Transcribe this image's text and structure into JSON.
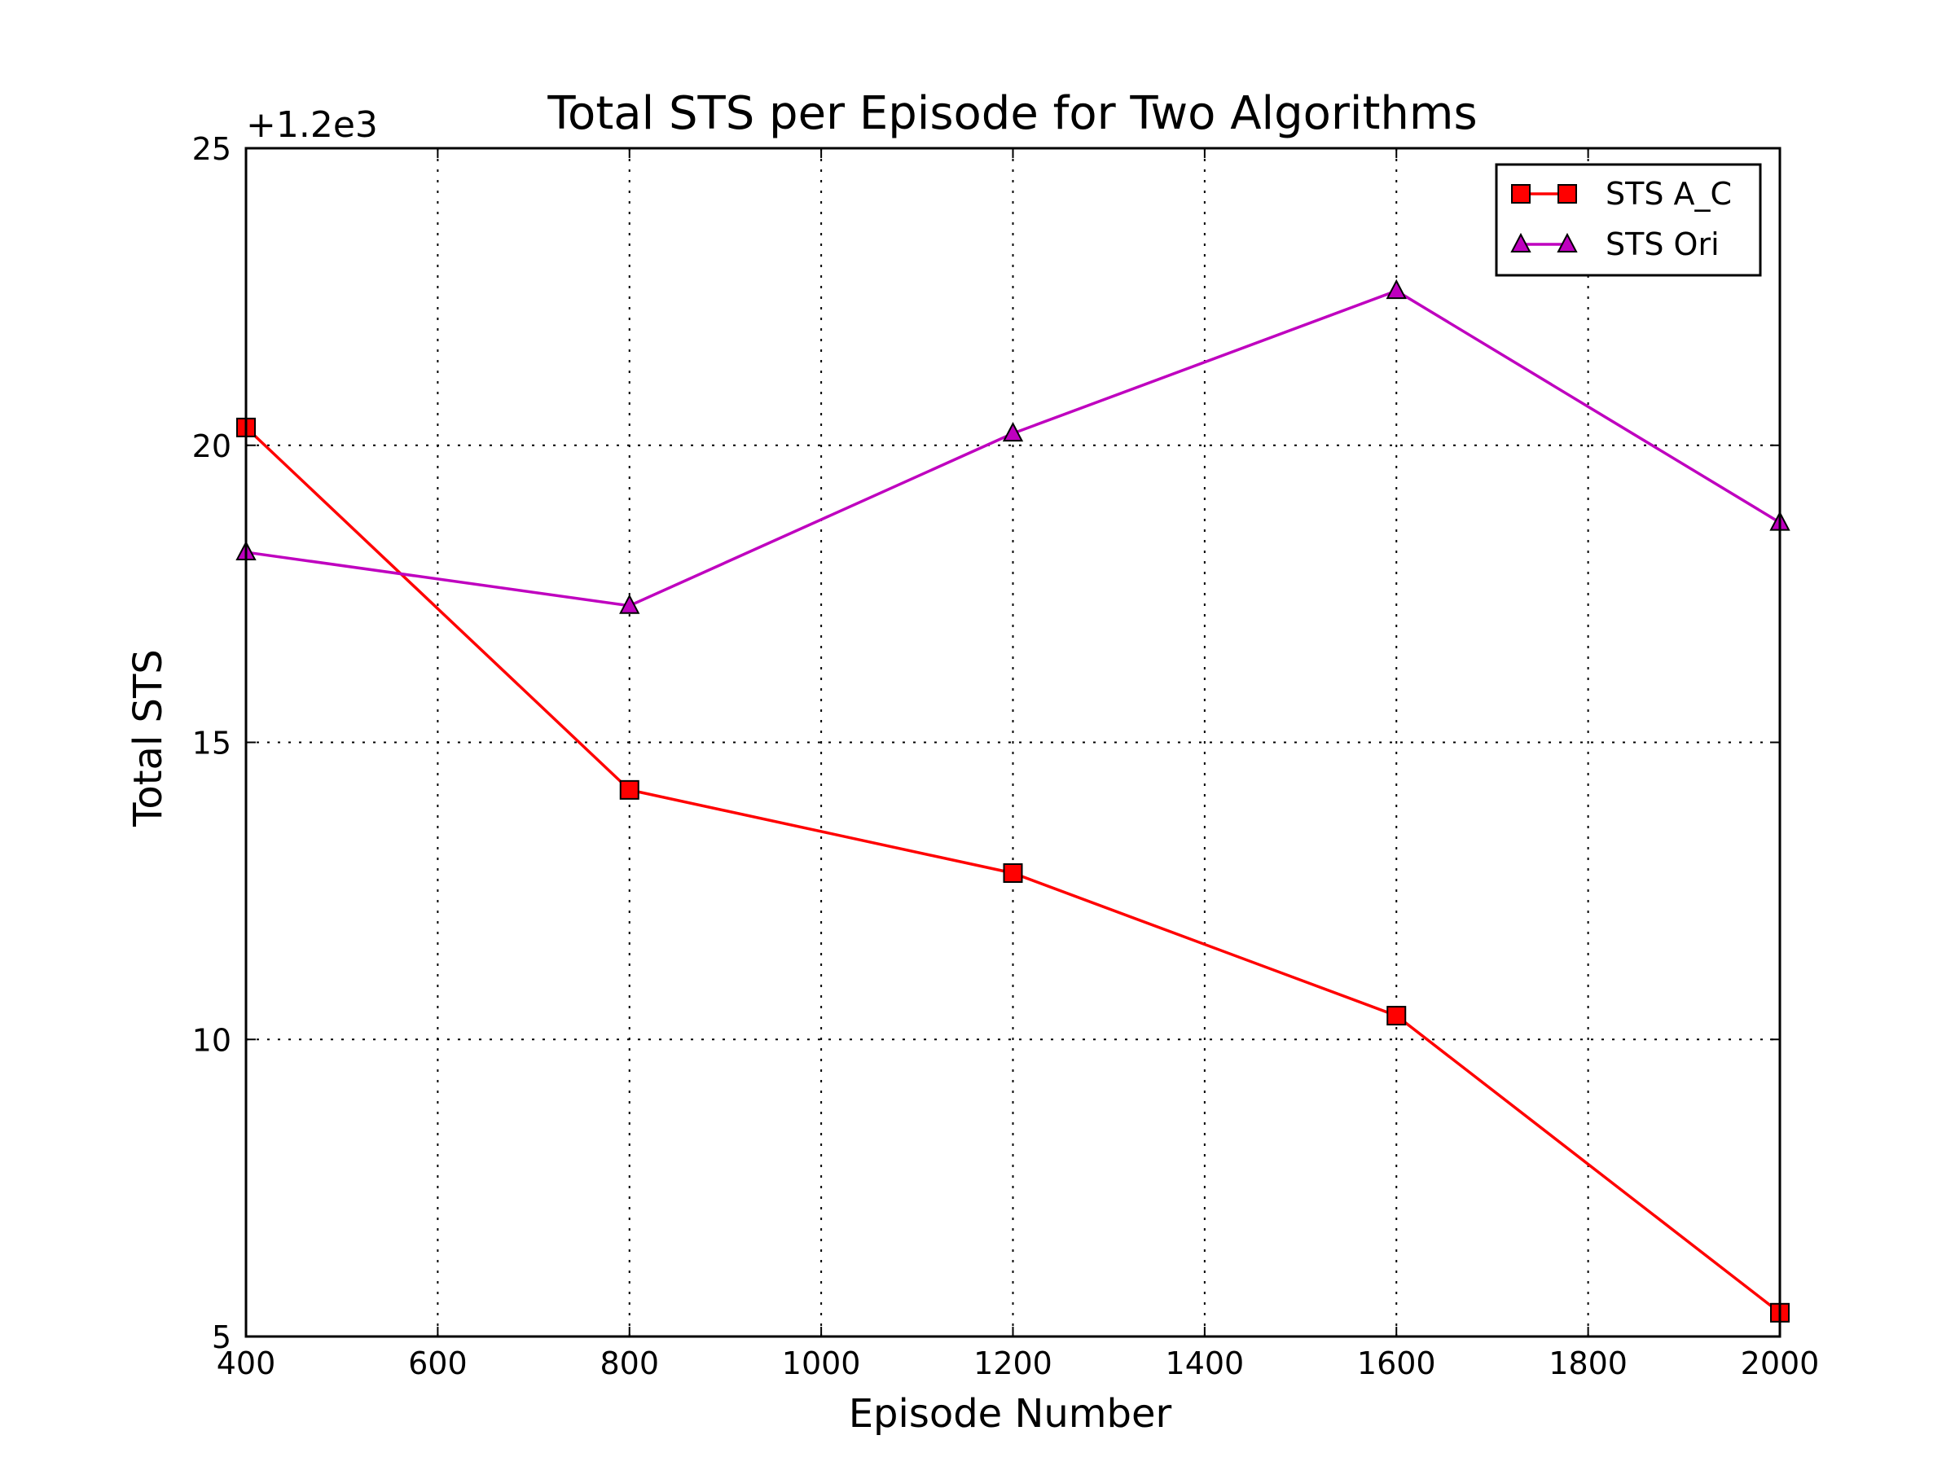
{
  "chart_data": {
    "type": "line",
    "title": "Total STS per Episode for Two Algorithms",
    "xlabel": "Episode Number",
    "ylabel": "Total STS",
    "y_offset_label": "+1.2e3",
    "x": [
      400,
      800,
      1200,
      1600,
      2000
    ],
    "xlim": [
      400,
      2000
    ],
    "ylim": [
      5,
      25
    ],
    "xticks": [
      400,
      600,
      800,
      1000,
      1200,
      1400,
      1600,
      1800,
      2000
    ],
    "yticks": [
      5,
      10,
      15,
      20,
      25
    ],
    "grid": true,
    "legend_position": "top-right",
    "series": [
      {
        "name": "STS A_C",
        "color": "#ff0000",
        "marker": "square",
        "values": [
          20.3,
          14.2,
          12.8,
          10.4,
          5.4
        ]
      },
      {
        "name": "STS Ori",
        "color": "#bf00bf",
        "marker": "triangle",
        "values": [
          18.2,
          17.3,
          20.2,
          22.6,
          18.7
        ]
      }
    ]
  }
}
